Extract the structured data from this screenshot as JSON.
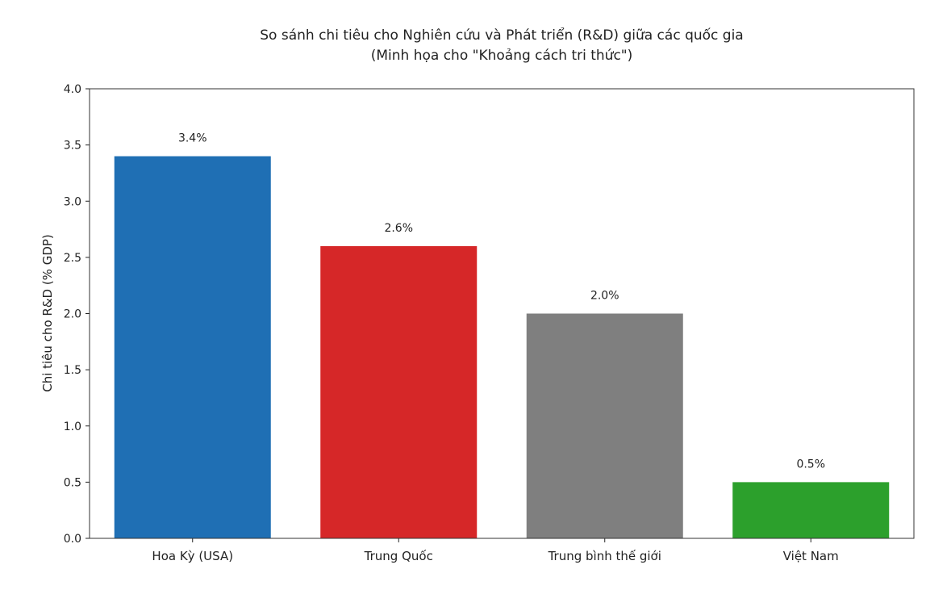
{
  "chart_data": {
    "type": "bar",
    "title": "So sánh chi tiêu cho Nghiên cứu và Phát triển (R&D) giữa các quốc gia",
    "subtitle": "(Minh họa cho \"Khoảng cách tri thức\")",
    "xlabel": "",
    "ylabel": "Chi tiêu cho R&D (% GDP)",
    "ylim": [
      0,
      4.0
    ],
    "yticks": [
      "0.0",
      "0.5",
      "1.0",
      "1.5",
      "2.0",
      "2.5",
      "3.0",
      "3.5",
      "4.0"
    ],
    "categories": [
      "Hoa Kỳ (USA)",
      "Trung Quốc",
      "Trung bình thế giới",
      "Việt Nam"
    ],
    "values": [
      3.4,
      2.6,
      2.0,
      0.5
    ],
    "data_labels": [
      "3.4%",
      "2.6%",
      "2.0%",
      "0.5%"
    ],
    "colors": [
      "#1f6fb4",
      "#d62728",
      "#7f7f7f",
      "#2ca02c"
    ],
    "grid": false,
    "legend": "none"
  }
}
